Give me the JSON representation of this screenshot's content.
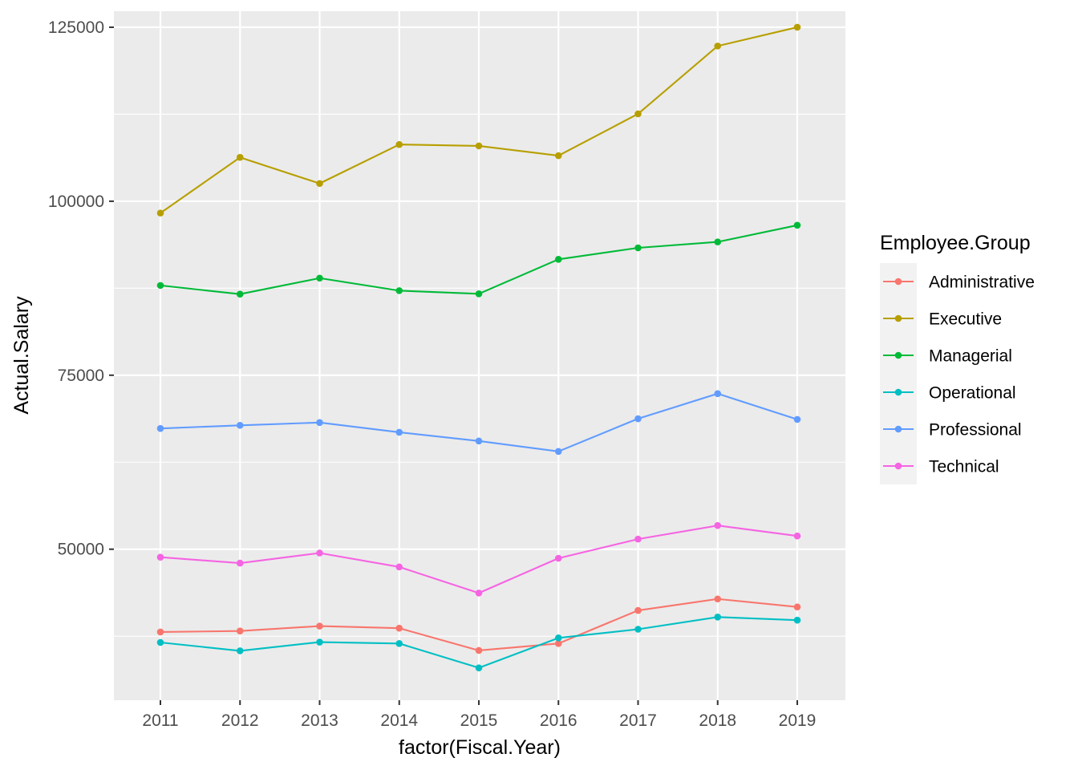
{
  "chart_data": {
    "type": "line",
    "title": "",
    "xlabel": "factor(Fiscal.Year)",
    "ylabel": "Actual.Salary",
    "categories": [
      "2011",
      "2012",
      "2013",
      "2014",
      "2015",
      "2016",
      "2017",
      "2018",
      "2019"
    ],
    "yticks": [
      "50000",
      "75000",
      "100000",
      "125000"
    ],
    "ylim": [
      28300,
      127300
    ],
    "grid": true,
    "legend": {
      "title": "Employee.Group",
      "placement": "right"
    },
    "series": [
      {
        "name": "Administrative",
        "color": "#F8766D",
        "values": [
          38100,
          38250,
          38950,
          38650,
          35450,
          36450,
          41200,
          42850,
          41700
        ]
      },
      {
        "name": "Executive",
        "color": "#B79F00",
        "values": [
          98300,
          106300,
          102550,
          108150,
          107950,
          106550,
          112550,
          122300,
          125000
        ]
      },
      {
        "name": "Managerial",
        "color": "#00BA38",
        "values": [
          87900,
          86650,
          88950,
          87150,
          86700,
          91650,
          93300,
          94150,
          96550
        ]
      },
      {
        "name": "Operational",
        "color": "#00BFC4",
        "values": [
          36600,
          35400,
          36650,
          36450,
          32950,
          37250,
          38500,
          40250,
          39800
        ]
      },
      {
        "name": "Professional",
        "color": "#619CFF",
        "values": [
          67350,
          67800,
          68200,
          66800,
          65550,
          64050,
          68750,
          72350,
          68650
        ]
      },
      {
        "name": "Technical",
        "color": "#F564E3",
        "values": [
          48850,
          48000,
          49450,
          47450,
          43700,
          48700,
          51450,
          53400,
          51900
        ]
      }
    ]
  }
}
